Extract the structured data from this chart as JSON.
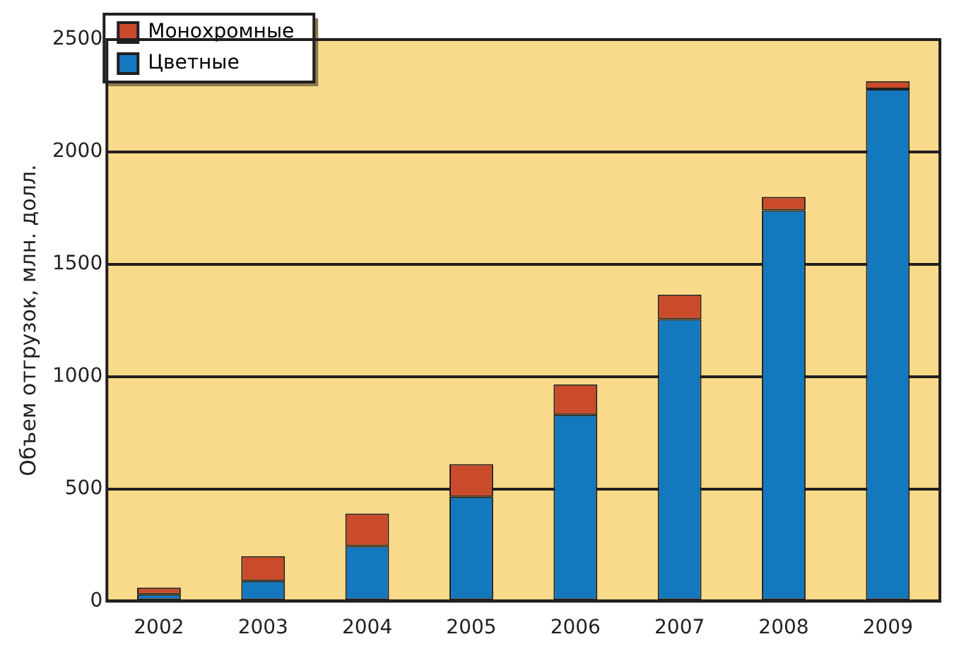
{
  "chart_data": {
    "type": "bar",
    "ylabel": "Объем отгрузок, млн. долл.",
    "categories": [
      "2002",
      "2003",
      "2004",
      "2005",
      "2006",
      "2007",
      "2008",
      "2009"
    ],
    "stacked": true,
    "series": [
      {
        "name": "Цветные",
        "color": "#1378be",
        "values": [
          30,
          90,
          245,
          465,
          830,
          1255,
          1740,
          2280
        ]
      },
      {
        "name": "Монохромные",
        "color": "#c94b2b",
        "values": [
          30,
          110,
          145,
          145,
          135,
          110,
          60,
          35
        ]
      }
    ],
    "ylim": [
      0,
      2500
    ],
    "yticks": [
      0,
      500,
      1000,
      1500,
      2000,
      2500
    ],
    "grid": "y",
    "legend": "top left"
  }
}
